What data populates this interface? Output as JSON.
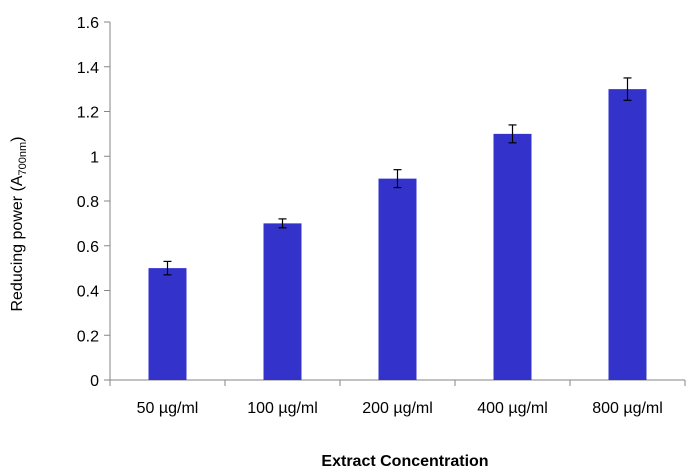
{
  "chart_data": {
    "type": "bar",
    "title": "",
    "xlabel": "Extract Concentration",
    "ylabel": "Reducing power (A700nm)",
    "ylabel_parts": {
      "main": "Reducing power (A",
      "sub": "700nm",
      "close": ")"
    },
    "categories": [
      "50 µg/ml",
      "100 µg/ml",
      "200 µg/ml",
      "400 µg/ml",
      "800 µg/ml"
    ],
    "values": [
      0.5,
      0.7,
      0.9,
      1.1,
      1.3
    ],
    "errors": [
      0.03,
      0.02,
      0.04,
      0.04,
      0.05
    ],
    "ylim": [
      0,
      1.6
    ],
    "yticks": [
      "0",
      "0.2",
      "0.4",
      "0.6",
      "0.8",
      "1",
      "1.2",
      "1.4",
      "1.6"
    ],
    "bar_color": "#3333CC",
    "grid": false,
    "legend": "none"
  }
}
